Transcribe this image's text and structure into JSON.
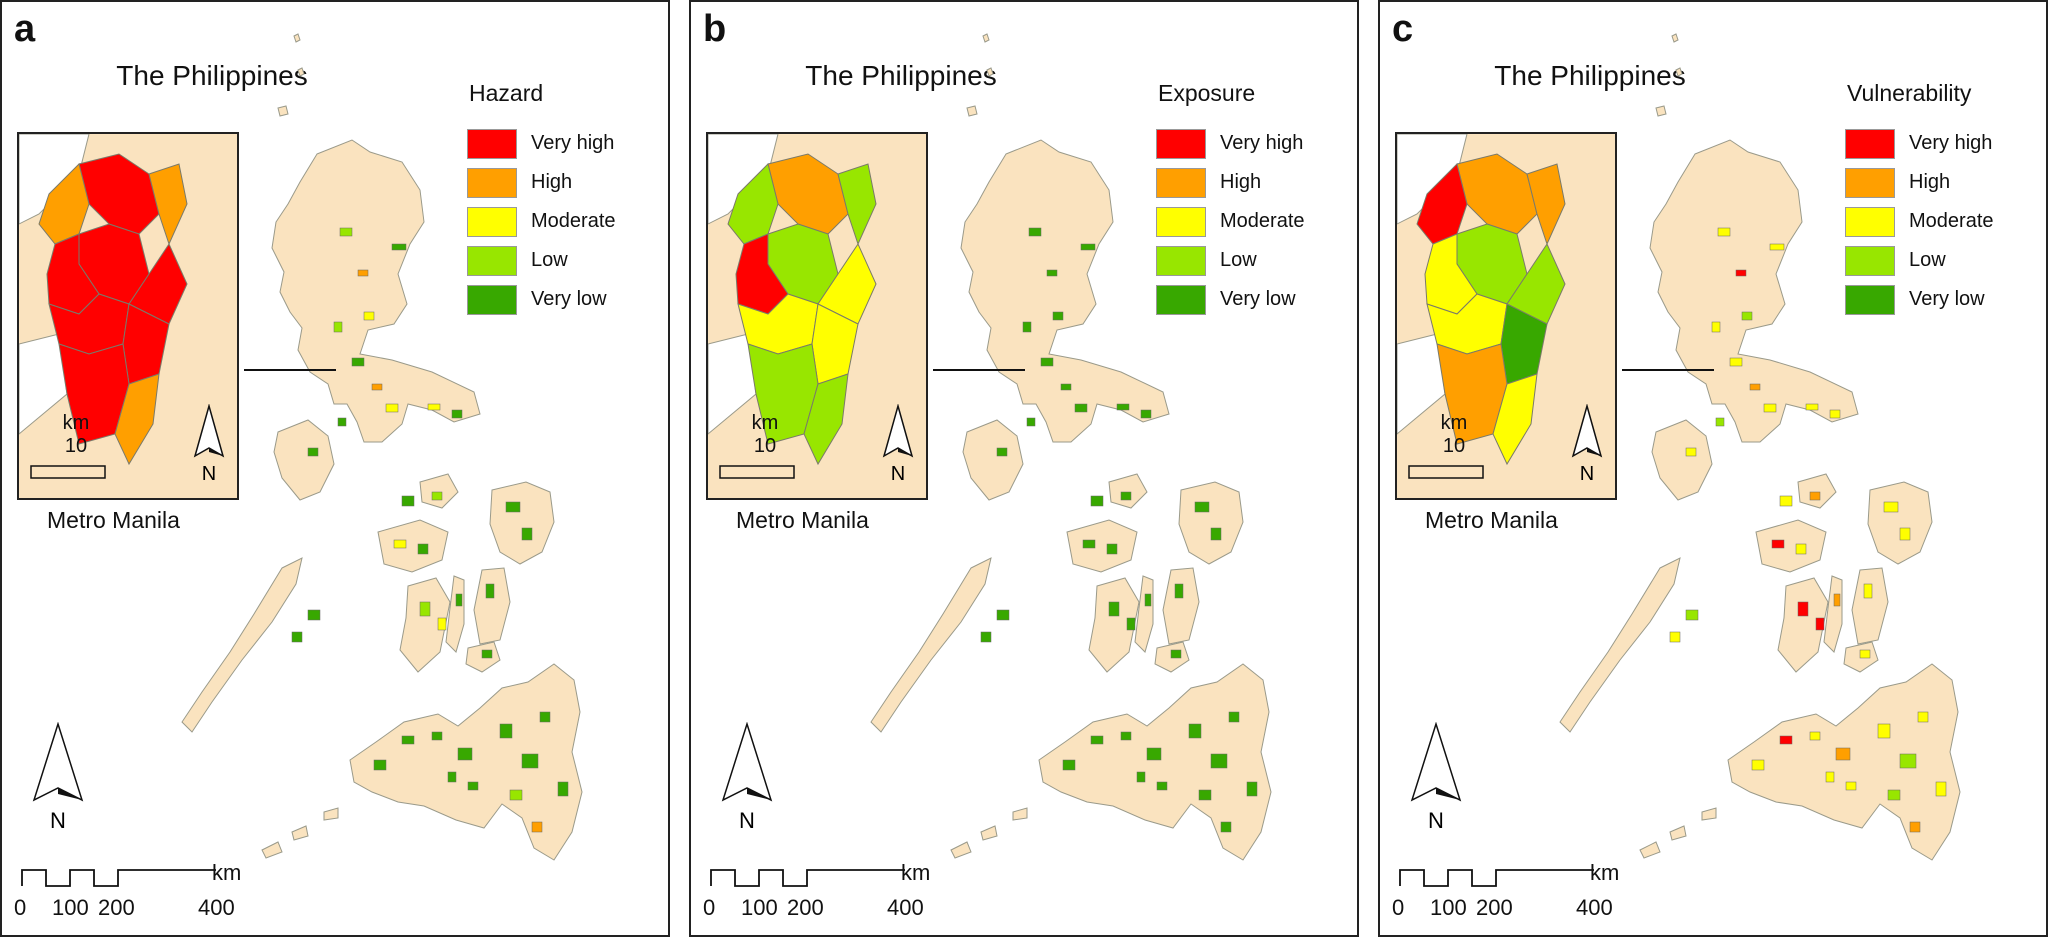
{
  "country_title": "The Philippines",
  "inset_label": "Metro Manila",
  "north_label": "N",
  "inset_scale": {
    "unit": "km",
    "value": "10"
  },
  "scale_bar": {
    "unit": "km",
    "ticks": [
      "0",
      "100",
      "200",
      "400"
    ]
  },
  "legend_colors": [
    "#ff0000",
    "#ff9f00",
    "#ffff00",
    "#98e600",
    "#38a800"
  ],
  "base_fill": "#fae3bf",
  "panels": [
    {
      "letter": "a",
      "legend_title": "Hazard",
      "legend_labels": [
        "Very high",
        "High",
        "Moderate",
        "Low",
        "Very low"
      ]
    },
    {
      "letter": "b",
      "legend_title": "Exposure",
      "legend_labels": [
        "Very high",
        "High",
        "Moderate",
        "Low",
        "Very low"
      ]
    },
    {
      "letter": "c",
      "legend_title": "Vulnerability",
      "legend_labels": [
        "Very high",
        "High",
        "Moderate",
        "Low",
        "Very low"
      ]
    }
  ]
}
